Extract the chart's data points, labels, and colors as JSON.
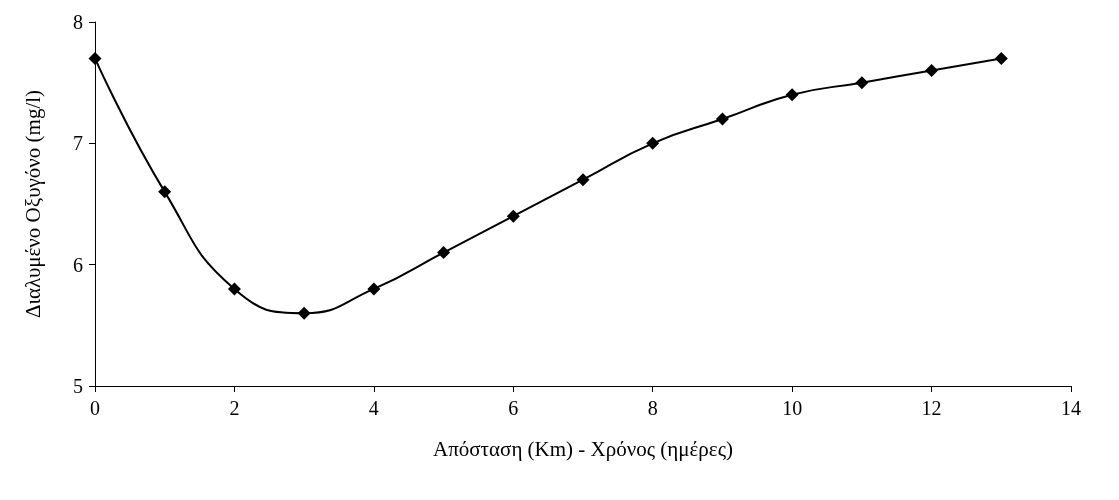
{
  "chart_data": {
    "type": "line",
    "xlabel": "Απόσταση (Km) - Χρόνος (ημέρες)",
    "ylabel": "Διαλυμένο Οξυγόνο (mg/l)",
    "x": [
      0,
      1,
      2,
      3,
      4,
      5,
      6,
      7,
      8,
      9,
      10,
      11,
      12,
      13
    ],
    "series": [
      {
        "color": "#000000",
        "values": [
          7.7,
          6.6,
          5.8,
          5.6,
          5.8,
          6.1,
          6.4,
          6.7,
          7.0,
          7.2,
          7.4,
          7.5,
          7.6,
          7.7
        ]
      }
    ],
    "xlim": [
      0,
      14
    ],
    "xticks": [
      0,
      2,
      4,
      6,
      8,
      10,
      12,
      14
    ],
    "ylim": [
      5,
      8
    ],
    "yticks": [
      5,
      6,
      7,
      8
    ],
    "grid": false,
    "marker": "diamond",
    "line_style": "solid"
  }
}
